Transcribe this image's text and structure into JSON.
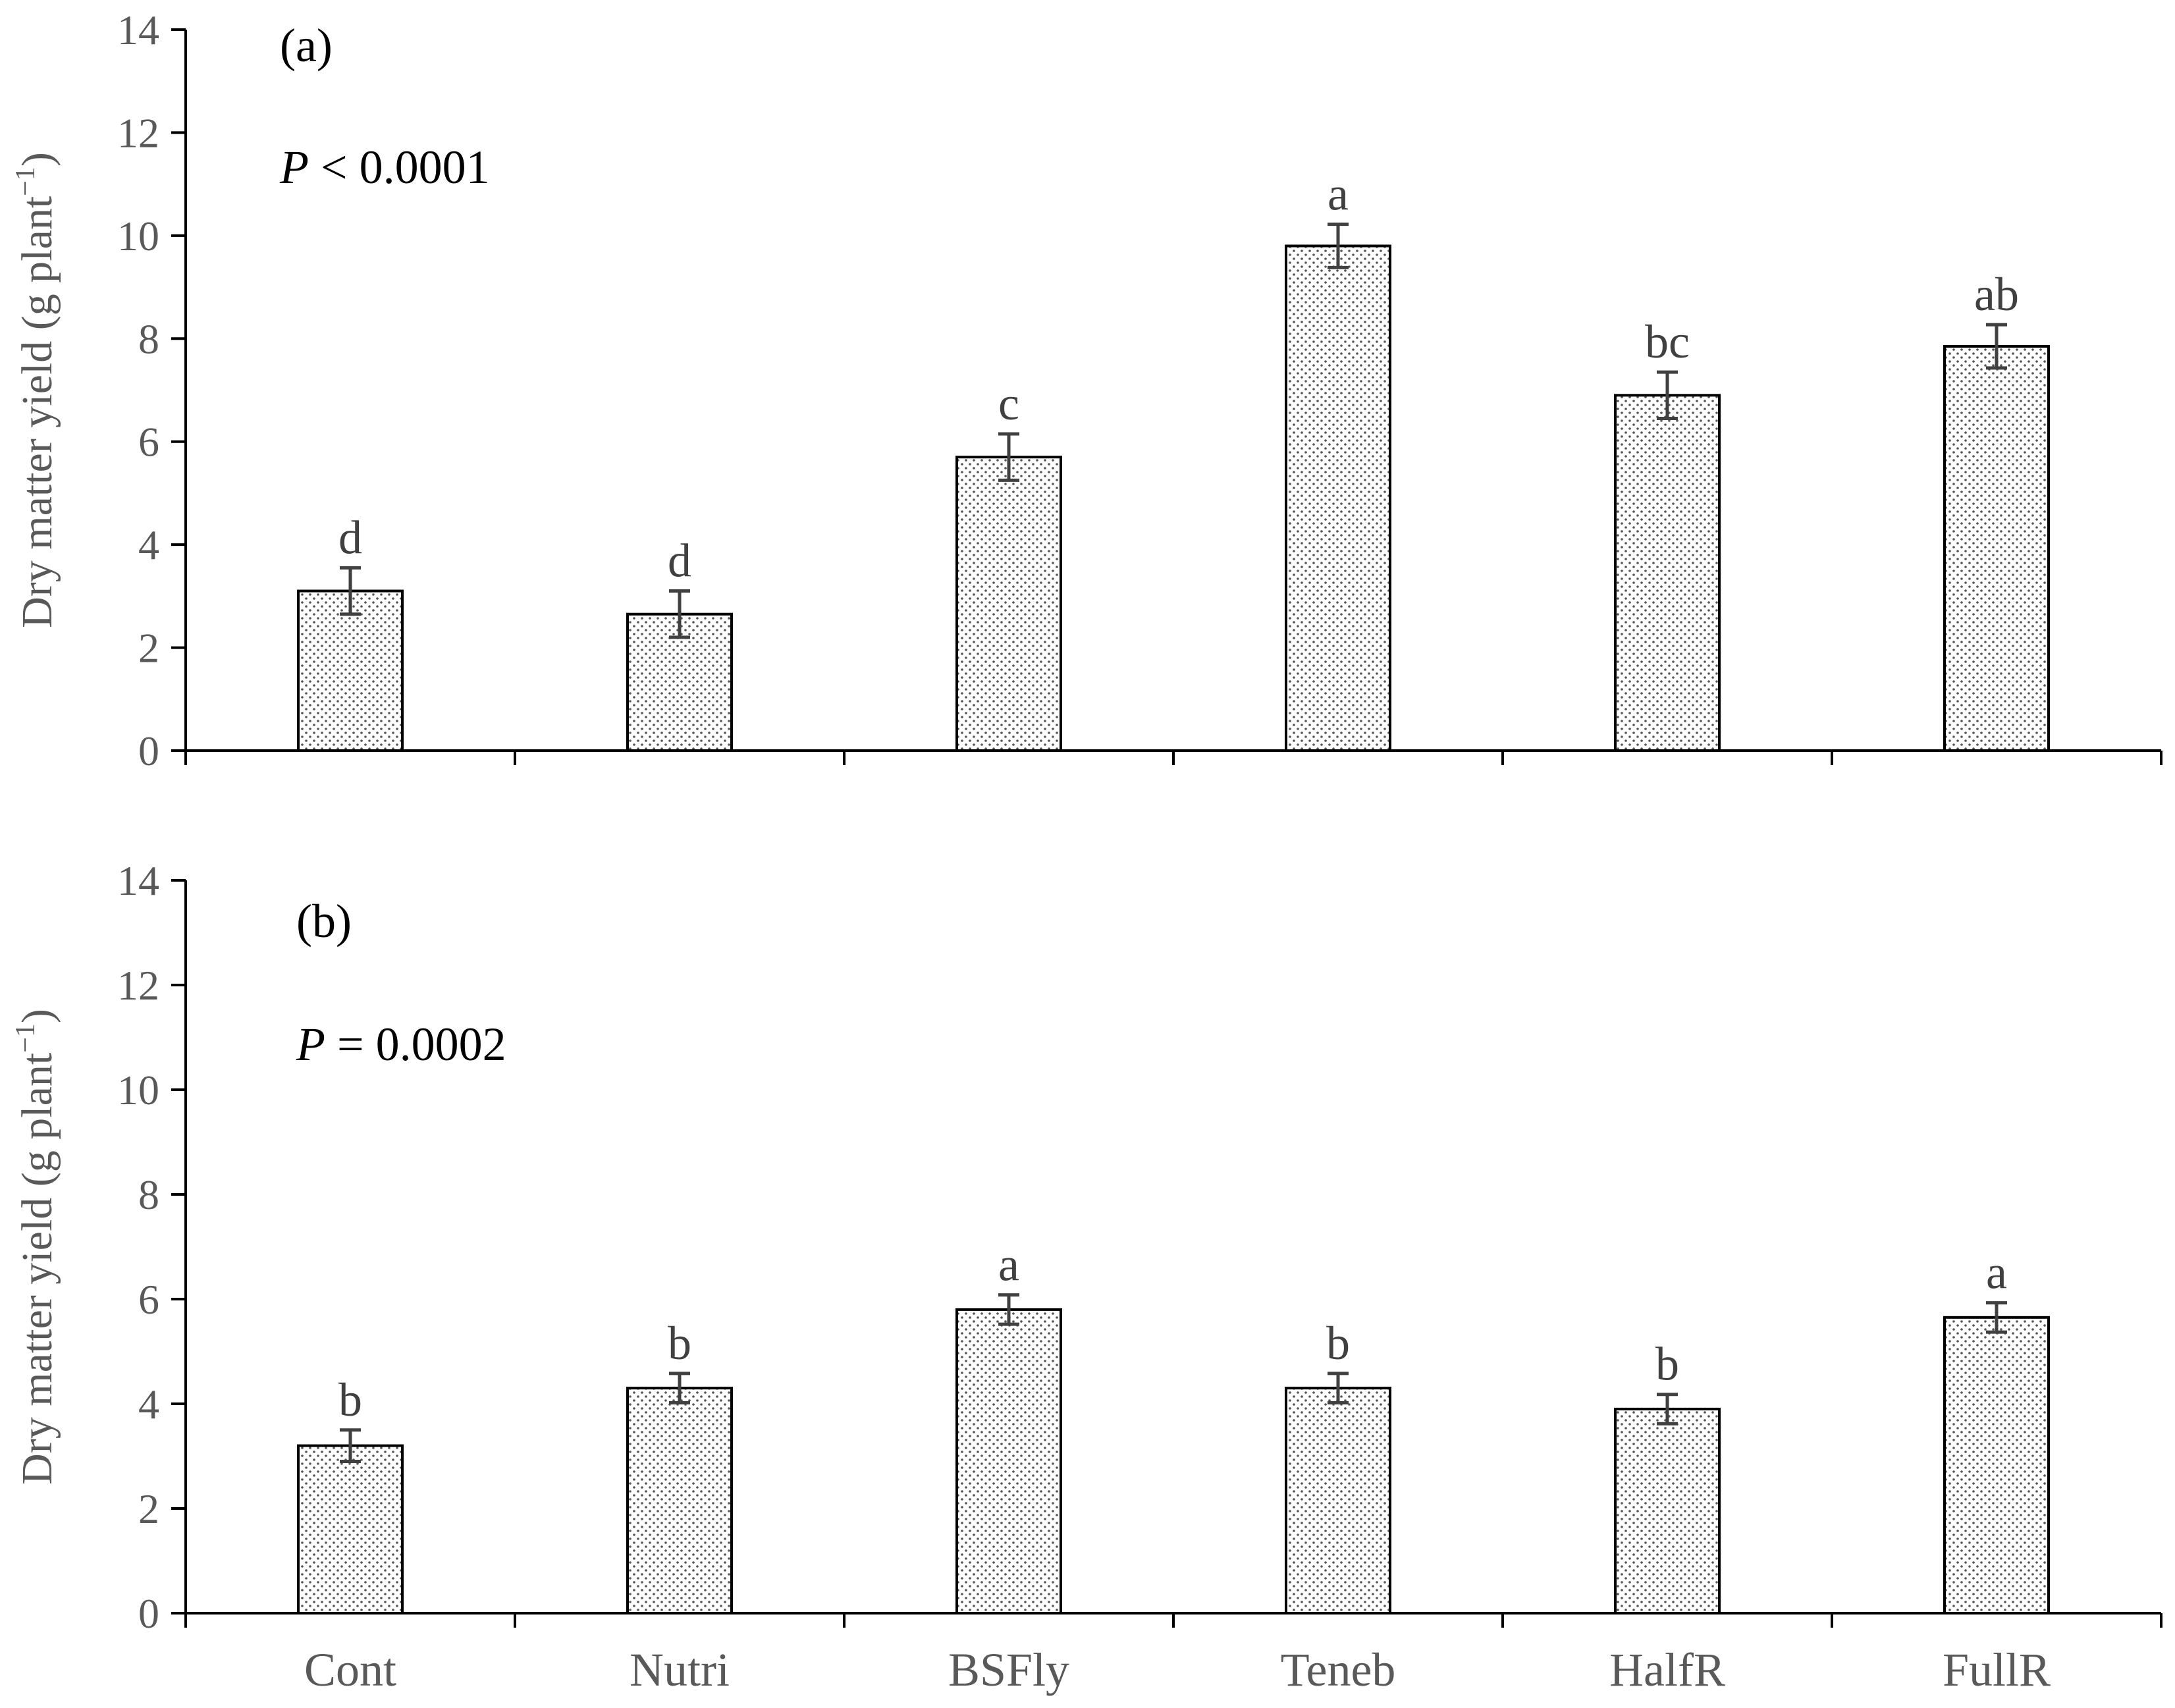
{
  "chart_data": [
    {
      "type": "bar",
      "panel_label": "(a)",
      "p_value": {
        "symbol": "P",
        "text": " < 0.0001"
      },
      "categories": [
        "Cont",
        "Nutri",
        "BSFly",
        "Teneb",
        "HalfR",
        "FullR"
      ],
      "values": [
        3.1,
        2.65,
        5.7,
        9.8,
        6.9,
        7.85
      ],
      "errors": [
        0.45,
        0.45,
        0.45,
        0.42,
        0.45,
        0.42
      ],
      "letters": [
        "d",
        "d",
        "c",
        "a",
        "bc",
        "ab"
      ],
      "ylabel": {
        "main": "Dry matter yield (g plant",
        "sup": "−1",
        "close": ")"
      },
      "xlabel": "",
      "ylim": [
        0,
        14
      ],
      "yticks": [
        "0",
        "2",
        "4",
        "6",
        "8",
        "10",
        "12",
        "14"
      ],
      "show_category_labels": false,
      "fill": "dotted pattern"
    },
    {
      "type": "bar",
      "panel_label": "(b)",
      "p_value": {
        "symbol": "P",
        "text": " = 0.0002"
      },
      "categories": [
        "Cont",
        "Nutri",
        "BSFly",
        "Teneb",
        "HalfR",
        "FullR"
      ],
      "values": [
        3.2,
        4.3,
        5.8,
        4.3,
        3.9,
        5.65
      ],
      "errors": [
        0.3,
        0.28,
        0.28,
        0.28,
        0.28,
        0.28
      ],
      "letters": [
        "b",
        "b",
        "a",
        "b",
        "b",
        "a"
      ],
      "ylabel": {
        "main": "Dry matter yield (g plant",
        "sup": "−1",
        "close": ")"
      },
      "xlabel": "",
      "ylim": [
        0,
        14
      ],
      "yticks": [
        "0",
        "2",
        "4",
        "6",
        "8",
        "10",
        "12",
        "14"
      ],
      "show_category_labels": true,
      "fill": "dotted pattern"
    }
  ],
  "colors": {
    "axis": "#000000",
    "tick_text": "#595959",
    "error_bar": "#404040",
    "bar_outline": "#000000",
    "bar_dot": "#555555"
  }
}
